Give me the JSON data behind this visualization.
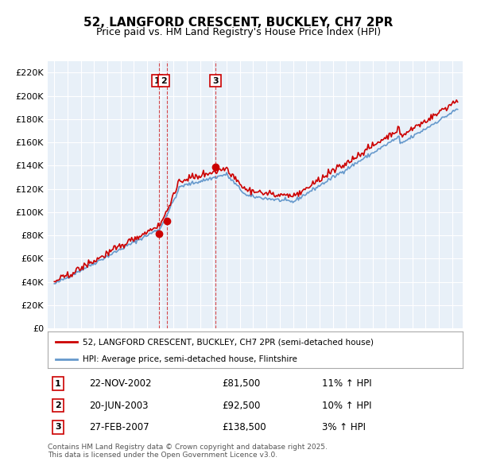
{
  "title": "52, LANGFORD CRESCENT, BUCKLEY, CH7 2PR",
  "subtitle": "Price paid vs. HM Land Registry's House Price Index (HPI)",
  "legend_line1": "52, LANGFORD CRESCENT, BUCKLEY, CH7 2PR (semi-detached house)",
  "legend_line2": "HPI: Average price, semi-detached house, Flintshire",
  "transactions": [
    {
      "num": 1,
      "date": "22-NOV-2002",
      "price": 81500,
      "pct": "11%",
      "dir": "↑",
      "label": "HPI",
      "year": 2002.9
    },
    {
      "num": 2,
      "date": "20-JUN-2003",
      "price": 92500,
      "pct": "10%",
      "dir": "↑",
      "label": "HPI",
      "year": 2003.5
    },
    {
      "num": 3,
      "date": "27-FEB-2007",
      "price": 138500,
      "pct": "3%",
      "dir": "↑",
      "label": "HPI",
      "year": 2007.15
    }
  ],
  "footer": "Contains HM Land Registry data © Crown copyright and database right 2025.\nThis data is licensed under the Open Government Licence v3.0.",
  "bg_color": "#e8f0f8",
  "red_color": "#cc0000",
  "blue_color": "#6699cc",
  "ylim": [
    0,
    230000
  ],
  "yticks": [
    0,
    20000,
    40000,
    60000,
    80000,
    100000,
    120000,
    140000,
    160000,
    180000,
    200000,
    220000
  ],
  "xmin": 1994.5,
  "xmax": 2025.8
}
